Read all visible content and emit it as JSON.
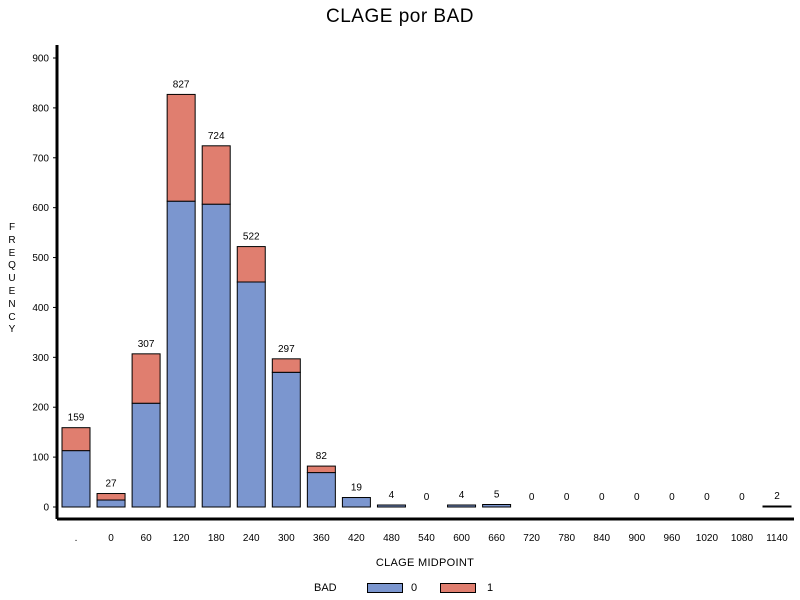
{
  "chart_data": {
    "type": "bar",
    "stacked": true,
    "title": "CLAGE  por  BAD",
    "xlabel": "CLAGE  MIDPOINT",
    "ylabel": "FREQUENCY",
    "categories": [
      ".",
      "0",
      "60",
      "120",
      "180",
      "240",
      "300",
      "360",
      "420",
      "480",
      "540",
      "600",
      "660",
      "720",
      "780",
      "840",
      "900",
      "960",
      "1020",
      "1080",
      "1140"
    ],
    "series": [
      {
        "name": "0",
        "color": "#7b96cf",
        "values": [
          113,
          14,
          208,
          613,
          607,
          451,
          270,
          69,
          19,
          4,
          0,
          4,
          5,
          0,
          0,
          0,
          0,
          0,
          0,
          0,
          0
        ]
      },
      {
        "name": "1",
        "color": "#e07e6f",
        "values": [
          46,
          13,
          99,
          214,
          117,
          71,
          27,
          13,
          0,
          0,
          0,
          0,
          0,
          0,
          0,
          0,
          0,
          0,
          0,
          0,
          2
        ]
      }
    ],
    "totals": [
      "159",
      "27",
      "307",
      "827",
      "724",
      "522",
      "297",
      "82",
      "19",
      "4",
      "0",
      "4",
      "5",
      "0",
      "0",
      "0",
      "0",
      "0",
      "0",
      "0",
      "2"
    ],
    "yticks": [
      "0",
      "100",
      "200",
      "300",
      "400",
      "500",
      "600",
      "700",
      "800",
      "900"
    ],
    "ylim": [
      0,
      900
    ],
    "legend": {
      "title": "BAD",
      "entries": [
        "0",
        "1"
      ],
      "position": "bottom"
    },
    "grid": false
  }
}
